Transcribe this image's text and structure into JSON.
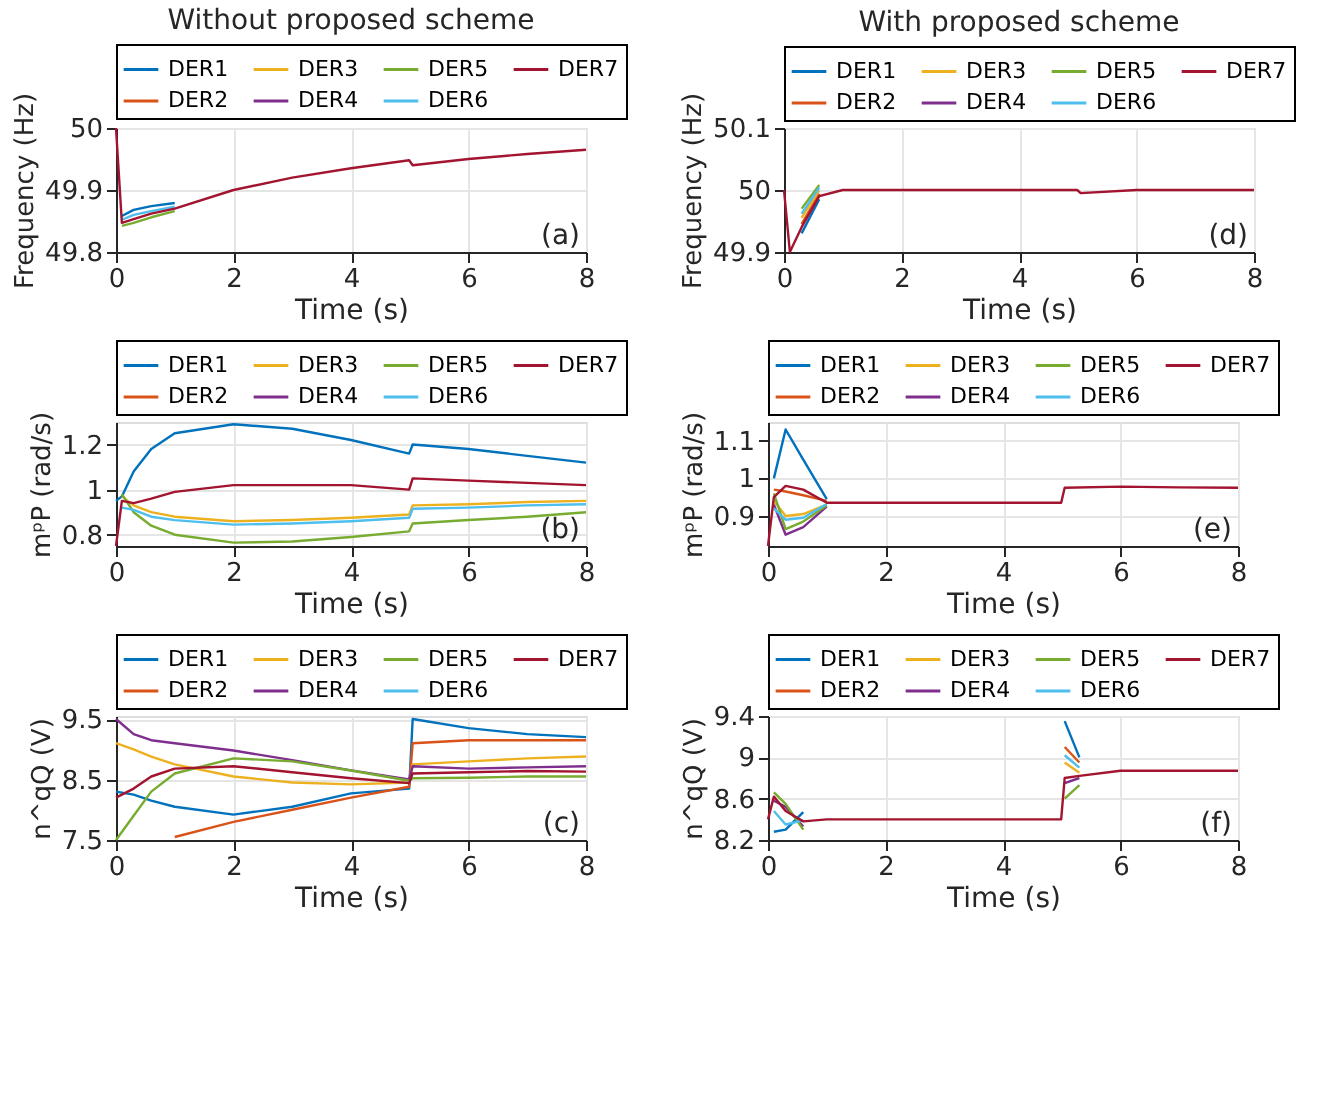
{
  "chart_data": [
    {
      "type": "line",
      "title": "Without proposed scheme",
      "xlabel": "Time (s)",
      "ylabel": "Frequency (Hz)",
      "annotations": [
        "(a)"
      ],
      "xlim": [
        0,
        8
      ],
      "xticks": [
        0,
        2,
        4,
        6,
        8
      ],
      "ylim": [
        49.8,
        50
      ],
      "yticks": [
        49.8,
        49.9,
        50
      ],
      "grid": true,
      "legend": "top",
      "marker": "none",
      "line_style": "solid",
      "x": [
        0,
        0.1,
        0.3,
        0.6,
        1,
        2,
        3,
        4,
        4.99,
        5.05,
        6,
        7,
        8
      ],
      "series": [
        {
          "name": "DER1",
          "color": "#0072bd",
          "values": [
            null,
            49.858,
            49.868,
            49.874,
            49.879,
            null,
            null,
            null,
            null,
            null,
            null,
            null,
            null
          ]
        },
        {
          "name": "DER2",
          "color": "#d95319",
          "values": [
            null,
            null,
            null,
            null,
            null,
            null,
            null,
            null,
            null,
            null,
            null,
            null,
            null
          ]
        },
        {
          "name": "DER3",
          "color": "#edb120",
          "values": [
            null,
            null,
            null,
            null,
            null,
            null,
            null,
            null,
            null,
            null,
            null,
            null,
            null
          ]
        },
        {
          "name": "DER4",
          "color": "#7e2f8e",
          "values": [
            null,
            null,
            null,
            null,
            null,
            null,
            null,
            null,
            null,
            null,
            null,
            null,
            null
          ]
        },
        {
          "name": "DER5",
          "color": "#77ac30",
          "values": [
            null,
            49.842,
            49.847,
            49.856,
            49.866,
            null,
            null,
            null,
            null,
            null,
            null,
            null,
            null
          ]
        },
        {
          "name": "DER6",
          "color": "#4dbeee",
          "values": [
            null,
            49.852,
            49.86,
            49.866,
            49.873,
            null,
            null,
            null,
            null,
            null,
            null,
            null,
            null
          ]
        },
        {
          "name": "DER7",
          "color": "#a2142f",
          "values": [
            50,
            49.847,
            49.853,
            49.862,
            49.87,
            49.9,
            49.92,
            49.935,
            49.948,
            49.94,
            49.95,
            49.958,
            49.965
          ]
        }
      ]
    },
    {
      "type": "line",
      "title": "With proposed scheme",
      "xlabel": "Time (s)",
      "ylabel": "Frequency (Hz)",
      "annotations": [
        "(d)"
      ],
      "xlim": [
        0,
        8
      ],
      "xticks": [
        0,
        2,
        4,
        6,
        8
      ],
      "ylim": [
        49.9,
        50.1
      ],
      "yticks": [
        49.9,
        50,
        50.1
      ],
      "grid": true,
      "legend": "top",
      "marker": "none",
      "line_style": "solid",
      "x": [
        0,
        0.1,
        0.3,
        0.6,
        1,
        2,
        3,
        4,
        4.99,
        5.05,
        6,
        7,
        8
      ],
      "series": [
        {
          "name": "DER1",
          "color": "#0072bd",
          "values": [
            null,
            null,
            49.93,
            49.985,
            null,
            null,
            null,
            null,
            null,
            null,
            null,
            null,
            null
          ]
        },
        {
          "name": "DER2",
          "color": "#d95319",
          "values": [
            null,
            null,
            49.945,
            49.994,
            null,
            null,
            null,
            null,
            null,
            null,
            null,
            null,
            null
          ]
        },
        {
          "name": "DER3",
          "color": "#edb120",
          "values": [
            null,
            null,
            49.955,
            50.0,
            null,
            null,
            null,
            null,
            null,
            null,
            null,
            null,
            null
          ]
        },
        {
          "name": "DER4",
          "color": "#7e2f8e",
          "values": [
            null,
            null,
            null,
            null,
            null,
            null,
            null,
            null,
            null,
            null,
            null,
            null,
            null
          ]
        },
        {
          "name": "DER5",
          "color": "#77ac30",
          "values": [
            null,
            null,
            49.97,
            50.008,
            null,
            null,
            null,
            null,
            null,
            null,
            null,
            null,
            null
          ]
        },
        {
          "name": "DER6",
          "color": "#4dbeee",
          "values": [
            null,
            null,
            49.962,
            50.004,
            null,
            null,
            null,
            null,
            null,
            null,
            null,
            null,
            null
          ]
        },
        {
          "name": "DER7",
          "color": "#a2142f",
          "values": [
            50,
            49.9,
            49.94,
            49.99,
            50,
            50,
            50,
            50,
            50,
            49.995,
            50,
            50,
            50
          ]
        }
      ]
    },
    {
      "type": "line",
      "xlabel": "Time (s)",
      "ylabel": "mᵖP (rad/s)",
      "annotations": [
        "(b)"
      ],
      "xlim": [
        0,
        8
      ],
      "xticks": [
        0,
        2,
        4,
        6,
        8
      ],
      "ylim": [
        0.75,
        1.3
      ],
      "yticks": [
        0.8,
        1,
        1.2
      ],
      "grid": true,
      "legend": "top",
      "marker": "none",
      "line_style": "solid",
      "x": [
        0,
        0.1,
        0.3,
        0.6,
        1,
        2,
        3,
        4,
        4.99,
        5.05,
        6,
        7,
        8
      ],
      "series": [
        {
          "name": "DER1",
          "color": "#0072bd",
          "values": [
            0.95,
            0.97,
            1.08,
            1.18,
            1.25,
            1.29,
            1.27,
            1.22,
            1.16,
            1.2,
            1.18,
            1.15,
            1.12
          ]
        },
        {
          "name": "DER2",
          "color": "#d95319",
          "values": [
            null,
            null,
            null,
            null,
            null,
            null,
            null,
            null,
            null,
            null,
            null,
            null,
            null
          ]
        },
        {
          "name": "DER3",
          "color": "#edb120",
          "values": [
            null,
            0.97,
            0.93,
            0.9,
            0.88,
            0.86,
            0.865,
            0.875,
            0.89,
            0.93,
            0.935,
            0.945,
            0.95
          ]
        },
        {
          "name": "DER4",
          "color": "#7e2f8e",
          "values": [
            null,
            null,
            null,
            null,
            null,
            null,
            null,
            null,
            null,
            null,
            null,
            null,
            null
          ]
        },
        {
          "name": "DER5",
          "color": "#77ac30",
          "values": [
            null,
            0.98,
            0.9,
            0.84,
            0.8,
            0.765,
            0.77,
            0.79,
            0.815,
            0.85,
            0.865,
            0.88,
            0.9
          ]
        },
        {
          "name": "DER6",
          "color": "#4dbeee",
          "values": [
            null,
            0.92,
            0.91,
            0.88,
            0.865,
            0.845,
            0.85,
            0.86,
            0.875,
            0.915,
            0.92,
            0.93,
            0.935
          ]
        },
        {
          "name": "DER7",
          "color": "#a2142f",
          "values": [
            0.75,
            0.95,
            0.94,
            0.96,
            0.99,
            1.02,
            1.02,
            1.02,
            1.0,
            1.05,
            1.04,
            1.03,
            1.02
          ]
        }
      ]
    },
    {
      "type": "line",
      "xlabel": "Time (s)",
      "ylabel": "mᵖP (rad/s)",
      "annotations": [
        "(e)"
      ],
      "xlim": [
        0,
        8
      ],
      "xticks": [
        0,
        2,
        4,
        6,
        8
      ],
      "ylim": [
        0.82,
        1.15
      ],
      "yticks": [
        0.9,
        1,
        1.1
      ],
      "grid": true,
      "legend": "top",
      "marker": "none",
      "line_style": "solid",
      "x": [
        0,
        0.1,
        0.3,
        0.6,
        1,
        2,
        3,
        4,
        4.99,
        5.05,
        6,
        7,
        8
      ],
      "series": [
        {
          "name": "DER1",
          "color": "#0072bd",
          "values": [
            null,
            1.0,
            1.13,
            1.05,
            0.945,
            null,
            null,
            null,
            null,
            null,
            null,
            null,
            null
          ]
        },
        {
          "name": "DER2",
          "color": "#d95319",
          "values": [
            null,
            0.97,
            0.965,
            0.955,
            0.94,
            null,
            null,
            null,
            null,
            null,
            null,
            null,
            null
          ]
        },
        {
          "name": "DER3",
          "color": "#edb120",
          "values": [
            null,
            0.94,
            0.9,
            0.905,
            0.93,
            null,
            null,
            null,
            null,
            null,
            null,
            null,
            null
          ]
        },
        {
          "name": "DER4",
          "color": "#7e2f8e",
          "values": [
            null,
            0.93,
            0.85,
            0.87,
            0.925,
            null,
            null,
            null,
            null,
            null,
            null,
            null,
            null
          ]
        },
        {
          "name": "DER5",
          "color": "#77ac30",
          "values": [
            null,
            0.96,
            0.865,
            0.885,
            0.928,
            null,
            null,
            null,
            null,
            null,
            null,
            null,
            null
          ]
        },
        {
          "name": "DER6",
          "color": "#4dbeee",
          "values": [
            null,
            0.92,
            0.89,
            0.895,
            0.932,
            null,
            null,
            null,
            null,
            null,
            null,
            null,
            null
          ]
        },
        {
          "name": "DER7",
          "color": "#a2142f",
          "values": [
            0.82,
            0.95,
            0.98,
            0.97,
            0.935,
            0.935,
            0.935,
            0.935,
            0.935,
            0.975,
            0.978,
            0.976,
            0.975
          ]
        }
      ]
    },
    {
      "type": "line",
      "xlabel": "Time (s)",
      "ylabel": "n^qQ (V)",
      "annotations": [
        "(c)"
      ],
      "xlim": [
        0,
        8
      ],
      "xticks": [
        0,
        2,
        4,
        6,
        8
      ],
      "ylim": [
        7.5,
        9.55
      ],
      "yticks": [
        7.5,
        8.5,
        9.5
      ],
      "grid": true,
      "legend": "top",
      "marker": "none",
      "line_style": "solid",
      "x": [
        0,
        0.3,
        0.6,
        1,
        2,
        3,
        4,
        4.99,
        5.05,
        6,
        7,
        8
      ],
      "series": [
        {
          "name": "DER1",
          "color": "#0072bd",
          "values": [
            8.3,
            8.25,
            8.15,
            8.05,
            7.92,
            8.05,
            8.27,
            8.35,
            9.5,
            9.35,
            9.25,
            9.2
          ]
        },
        {
          "name": "DER2",
          "color": "#d95319",
          "values": [
            null,
            null,
            null,
            7.55,
            7.8,
            8.0,
            8.2,
            8.38,
            9.1,
            9.15,
            9.15,
            9.15
          ]
        },
        {
          "name": "DER3",
          "color": "#edb120",
          "values": [
            9.1,
            9.0,
            8.88,
            8.75,
            8.55,
            8.45,
            8.42,
            8.45,
            8.75,
            8.8,
            8.85,
            8.88
          ]
        },
        {
          "name": "DER4",
          "color": "#7e2f8e",
          "values": [
            9.5,
            9.25,
            9.15,
            9.1,
            8.98,
            8.82,
            8.65,
            8.5,
            8.72,
            8.68,
            8.7,
            8.72
          ]
        },
        {
          "name": "DER5",
          "color": "#77ac30",
          "values": [
            7.5,
            7.9,
            8.3,
            8.6,
            8.85,
            8.8,
            8.65,
            8.48,
            8.52,
            8.53,
            8.55,
            8.55
          ]
        },
        {
          "name": "DER6",
          "color": "#4dbeee",
          "values": [
            null,
            null,
            null,
            null,
            null,
            null,
            null,
            null,
            null,
            null,
            null,
            null
          ]
        },
        {
          "name": "DER7",
          "color": "#a2142f",
          "values": [
            8.2,
            8.35,
            8.55,
            8.68,
            8.72,
            8.62,
            8.52,
            8.44,
            8.6,
            8.62,
            8.64,
            8.63
          ]
        }
      ]
    },
    {
      "type": "line",
      "xlabel": "Time (s)",
      "ylabel": "n^qQ (V)",
      "annotations": [
        "(f)"
      ],
      "xlim": [
        0,
        8
      ],
      "xticks": [
        0,
        2,
        4,
        6,
        8
      ],
      "ylim": [
        8.2,
        9.4
      ],
      "yticks": [
        8.2,
        8.6,
        9,
        9.4
      ],
      "grid": true,
      "legend": "top",
      "marker": "none",
      "line_style": "solid",
      "x": [
        0,
        0.1,
        0.3,
        0.6,
        1,
        2,
        3,
        4,
        4.99,
        5.05,
        5.3,
        6,
        7,
        8
      ],
      "series": [
        {
          "name": "DER1",
          "color": "#0072bd",
          "values": [
            null,
            8.28,
            8.3,
            8.47,
            null,
            null,
            null,
            null,
            null,
            9.35,
            9.0,
            null,
            null,
            null
          ]
        },
        {
          "name": "DER2",
          "color": "#d95319",
          "values": [
            null,
            null,
            null,
            null,
            null,
            null,
            null,
            null,
            null,
            9.1,
            8.95,
            null,
            null,
            null
          ]
        },
        {
          "name": "DER3",
          "color": "#edb120",
          "values": [
            null,
            null,
            null,
            null,
            null,
            null,
            null,
            null,
            null,
            8.95,
            8.85,
            null,
            null,
            null
          ]
        },
        {
          "name": "DER4",
          "color": "#7e2f8e",
          "values": [
            null,
            8.58,
            8.52,
            8.33,
            null,
            null,
            null,
            null,
            null,
            8.75,
            8.8,
            null,
            null,
            null
          ]
        },
        {
          "name": "DER5",
          "color": "#77ac30",
          "values": [
            null,
            8.66,
            8.55,
            8.3,
            null,
            null,
            null,
            null,
            null,
            8.6,
            8.73,
            null,
            null,
            null
          ]
        },
        {
          "name": "DER6",
          "color": "#4dbeee",
          "values": [
            null,
            8.48,
            8.35,
            8.39,
            null,
            null,
            null,
            null,
            null,
            9.02,
            8.9,
            null,
            null,
            null
          ]
        },
        {
          "name": "DER7",
          "color": "#a2142f",
          "values": [
            8.4,
            8.62,
            8.48,
            8.38,
            8.4,
            8.4,
            8.4,
            8.4,
            8.4,
            8.8,
            8.82,
            8.87,
            8.87,
            8.87
          ]
        }
      ]
    }
  ]
}
